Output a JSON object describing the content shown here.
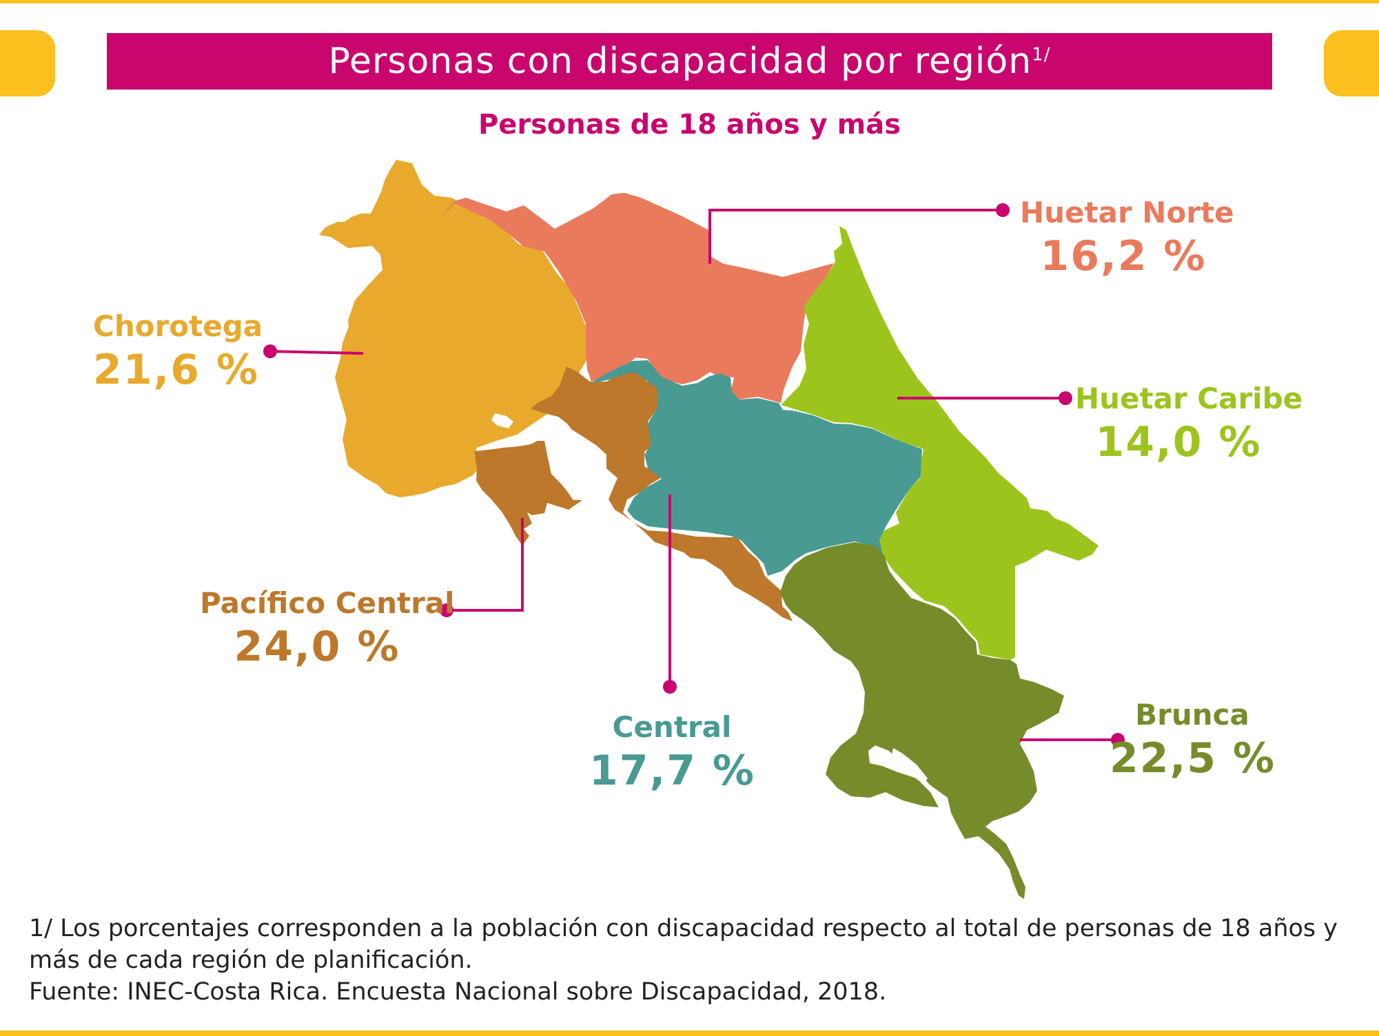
{
  "header": {
    "title": "Personas con discapacidad por región",
    "title_superscript": "1/",
    "subtitle": "Personas de 18 años y más"
  },
  "colors": {
    "accent_magenta": "#c8066d",
    "accent_yellow": "#fbbf1e",
    "chorotega": "#e8a92c",
    "huetar_norte": "#ea7a5c",
    "huetar_caribe": "#9dc41d",
    "pacifico_central": "#bd782b",
    "central": "#489a93",
    "brunca": "#768c2b"
  },
  "regions": [
    {
      "id": "chorotega",
      "name": "Chorotega",
      "value": "21,6 %",
      "percent": 21.6
    },
    {
      "id": "huetar_norte",
      "name": "Huetar Norte",
      "value": "16,2 %",
      "percent": 16.2
    },
    {
      "id": "huetar_caribe",
      "name": "Huetar Caribe",
      "value": "14,0 %",
      "percent": 14.0
    },
    {
      "id": "pacifico_central",
      "name": "Pacífico Central",
      "value": "24,0 %",
      "percent": 24.0
    },
    {
      "id": "central",
      "name": "Central",
      "value": "17,7 %",
      "percent": 17.7
    },
    {
      "id": "brunca",
      "name": "Brunca",
      "value": "22,5 %",
      "percent": 22.5
    }
  ],
  "footnotes": {
    "note": "1/ Los porcentajes corresponden a la población con discapacidad respecto al total de personas de 18 años y más de cada región de planificación.",
    "source": "Fuente: INEC-Costa Rica. Encuesta Nacional sobre Discapacidad, 2018."
  }
}
